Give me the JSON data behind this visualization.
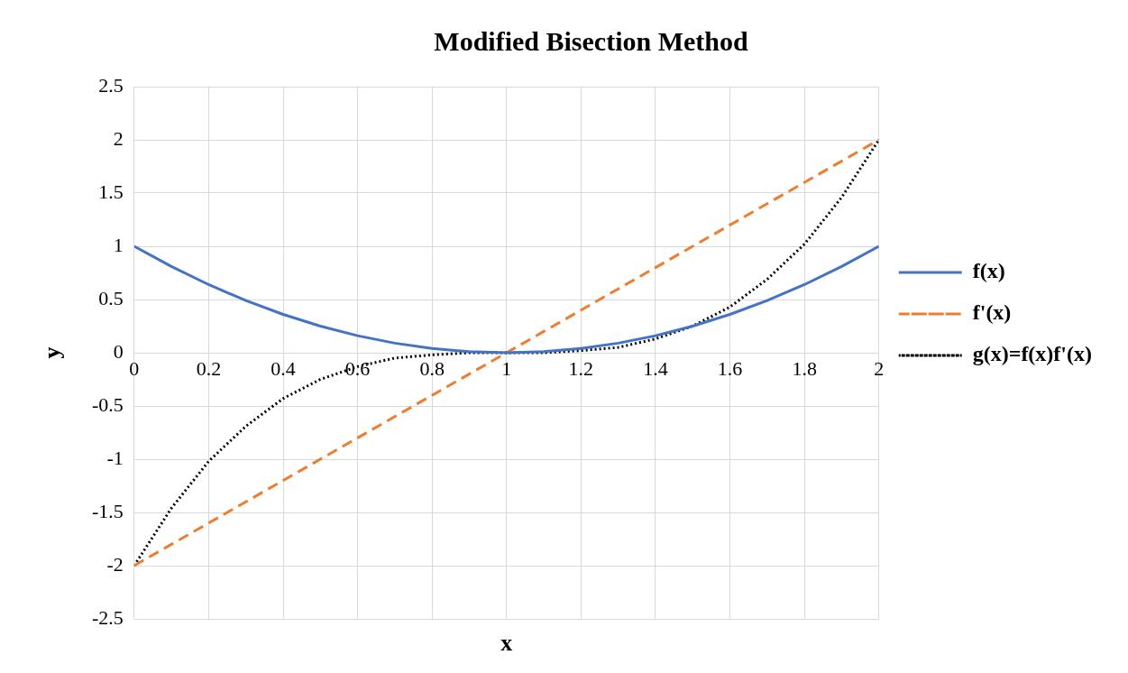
{
  "chart_data": {
    "type": "line",
    "title": "Modified Bisection Method",
    "xlabel": "x",
    "ylabel": "y",
    "x": [
      0,
      0.1,
      0.2,
      0.3,
      0.4,
      0.5,
      0.6,
      0.7,
      0.8,
      0.9,
      1,
      1.1,
      1.2,
      1.3,
      1.4,
      1.5,
      1.6,
      1.7,
      1.8,
      1.9,
      2
    ],
    "series": [
      {
        "name": "f(x)",
        "color": "#4472c4",
        "line_style": "solid",
        "values": [
          1,
          0.81,
          0.64,
          0.49,
          0.36,
          0.25,
          0.16,
          0.09,
          0.04,
          0.01,
          0,
          0.01,
          0.04,
          0.09,
          0.16,
          0.25,
          0.36,
          0.49,
          0.64,
          0.81,
          1
        ]
      },
      {
        "name": "f'(x)",
        "color": "#ed7d31",
        "line_style": "dashed",
        "values": [
          -2,
          -1.8,
          -1.6,
          -1.4,
          -1.2,
          -1,
          -0.8,
          -0.6,
          -0.4,
          -0.2,
          0,
          0.2,
          0.4,
          0.6,
          0.8,
          1,
          1.2,
          1.4,
          1.6,
          1.8,
          2
        ]
      },
      {
        "name": "g(x)=f(x)f'(x)",
        "color": "#000000",
        "line_style": "dotted",
        "values": [
          -2,
          -1.46,
          -1.02,
          -0.69,
          -0.43,
          -0.25,
          -0.13,
          -0.05,
          -0.02,
          0,
          0,
          0,
          0.02,
          0.05,
          0.13,
          0.25,
          0.43,
          0.69,
          1.02,
          1.46,
          2
        ]
      }
    ],
    "xlim": [
      0,
      2
    ],
    "xticks": [
      0,
      0.2,
      0.4,
      0.6,
      0.8,
      1,
      1.2,
      1.4,
      1.6,
      1.8,
      2
    ],
    "ylim": [
      -2.5,
      2.5
    ],
    "yticks": [
      -2.5,
      -2,
      -1.5,
      -1,
      -0.5,
      0,
      0.5,
      1,
      1.5,
      2,
      2.5
    ],
    "grid": true,
    "legend": "right",
    "marker": "none"
  }
}
